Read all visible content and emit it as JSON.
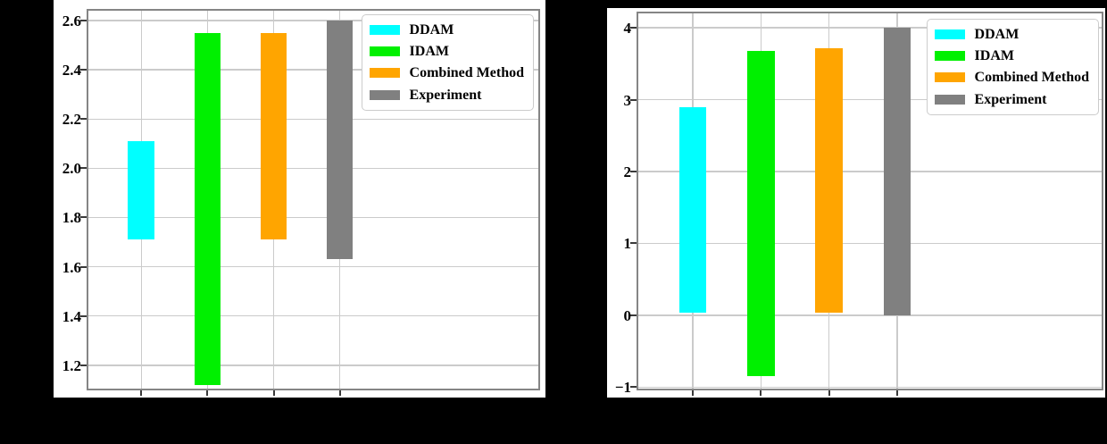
{
  "page": {
    "background": "#000000",
    "panel_background": "#ffffff"
  },
  "colors": {
    "grid": "#cbcbcb",
    "axis_border": "#858585",
    "tick": "#3a3a3a",
    "legend_border": "#cccccc",
    "text": "#000000"
  },
  "chart_data": [
    {
      "type": "bar",
      "subtype": "floating-range-bars",
      "title": "",
      "xlabel": "",
      "ylabel": "",
      "categories": [
        "DDAM",
        "IDAM",
        "Combined Method",
        "Experiment"
      ],
      "x_positions": [
        1,
        2,
        3,
        4
      ],
      "bar_width": 0.4,
      "bars": [
        {
          "label": "DDAM",
          "color": "#00ffff",
          "low": 1.71,
          "high": 2.11
        },
        {
          "label": "IDAM",
          "color": "#00f000",
          "low": 1.12,
          "high": 2.55
        },
        {
          "label": "Combined Method",
          "color": "#ffa500",
          "low": 1.71,
          "high": 2.55
        },
        {
          "label": "Experiment",
          "color": "#808080",
          "low": 1.63,
          "high": 2.6
        }
      ],
      "xlim": [
        0.2,
        7.0
      ],
      "ylim": [
        1.105,
        2.64
      ],
      "yticks": [
        1.2,
        1.4,
        1.6,
        1.8,
        2.0,
        2.2,
        2.4,
        2.6
      ],
      "ytick_labels": [
        "1.2",
        "1.4",
        "1.6",
        "1.8",
        "2.0",
        "2.2",
        "2.4",
        "2.6"
      ],
      "xtick_labels": [
        "",
        "",
        "",
        ""
      ],
      "grid": true,
      "legend": {
        "position": "upper right",
        "entries": [
          "DDAM",
          "IDAM",
          "Combined Method",
          "Experiment"
        ]
      }
    },
    {
      "type": "bar",
      "subtype": "floating-range-bars",
      "title": "",
      "xlabel": "",
      "ylabel": "",
      "categories": [
        "DDAM",
        "IDAM",
        "Combined Method",
        "Experiment"
      ],
      "x_positions": [
        1,
        2,
        3,
        4
      ],
      "bar_width": 0.4,
      "bars": [
        {
          "label": "DDAM",
          "color": "#00ffff",
          "low": 0.04,
          "high": 2.9
        },
        {
          "label": "IDAM",
          "color": "#00f000",
          "low": -0.85,
          "high": 3.68
        },
        {
          "label": "Combined Method",
          "color": "#ffa500",
          "low": 0.04,
          "high": 3.72
        },
        {
          "label": "Experiment",
          "color": "#808080",
          "low": 0.0,
          "high": 4.0
        }
      ],
      "xlim": [
        0.2,
        7.0
      ],
      "ylim": [
        -1.02,
        4.2
      ],
      "yticks": [
        -1,
        0,
        1,
        2,
        3,
        4
      ],
      "ytick_labels": [
        "−1",
        "0",
        "1",
        "2",
        "3",
        "4"
      ],
      "xtick_labels": [
        "",
        "",
        "",
        ""
      ],
      "grid": true,
      "legend": {
        "position": "upper right",
        "entries": [
          "DDAM",
          "IDAM",
          "Combined Method",
          "Experiment"
        ]
      }
    }
  ]
}
